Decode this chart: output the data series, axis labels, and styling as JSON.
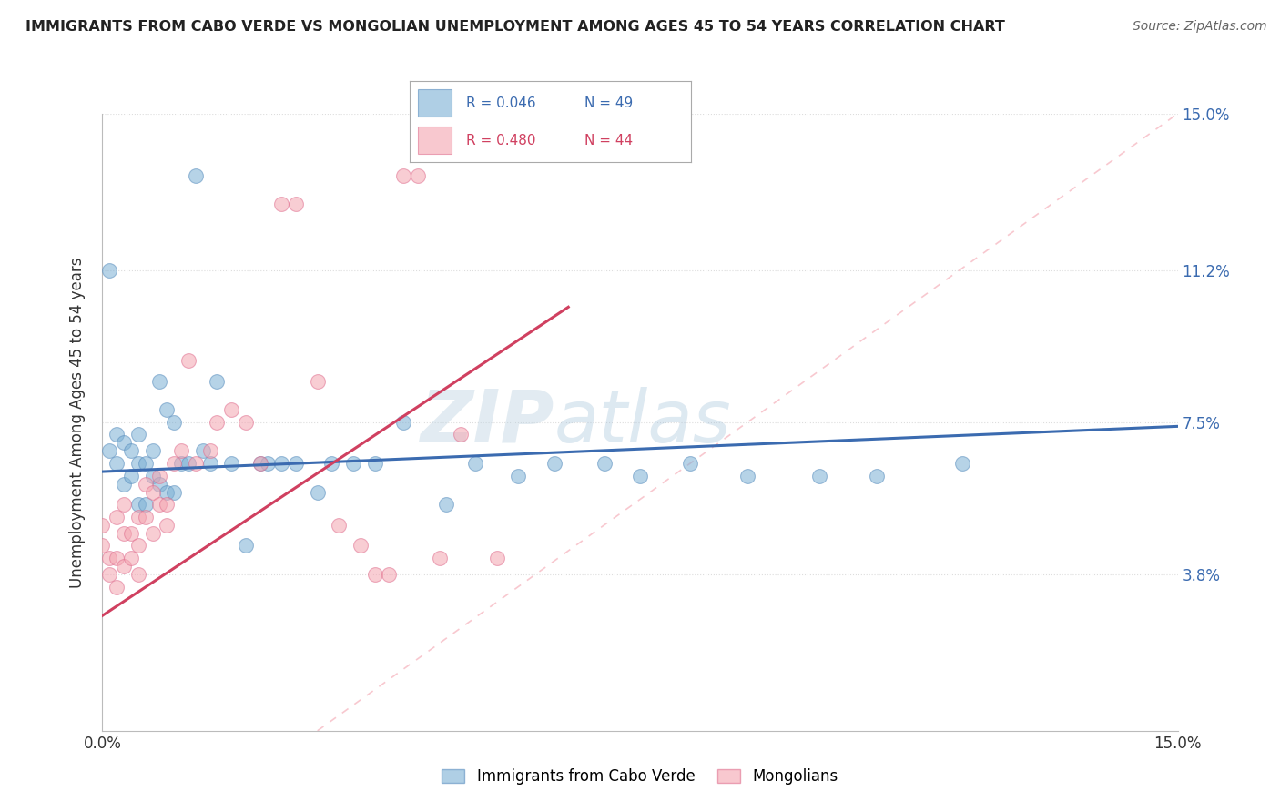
{
  "title": "IMMIGRANTS FROM CABO VERDE VS MONGOLIAN UNEMPLOYMENT AMONG AGES 45 TO 54 YEARS CORRELATION CHART",
  "source": "Source: ZipAtlas.com",
  "ylabel": "Unemployment Among Ages 45 to 54 years",
  "xlim": [
    0.0,
    0.15
  ],
  "ylim": [
    0.0,
    0.15
  ],
  "x_tick_positions": [
    0.0,
    0.15
  ],
  "x_tick_labels": [
    "0.0%",
    "15.0%"
  ],
  "y_tick_vals": [
    0.038,
    0.075,
    0.112,
    0.15
  ],
  "y_tick_labels": [
    "3.8%",
    "7.5%",
    "11.2%",
    "15.0%"
  ],
  "legend_blue_r": "R = 0.046",
  "legend_blue_n": "N = 49",
  "legend_pink_r": "R = 0.480",
  "legend_pink_n": "N = 44",
  "blue_color": "#7BAFD4",
  "pink_color": "#F4A4B0",
  "blue_scatter_edge": "#5B8FBF",
  "pink_scatter_edge": "#E07090",
  "blue_line_color": "#3B6BB0",
  "pink_line_color": "#D04060",
  "watermark_zip": "ZIP",
  "watermark_atlas": "atlas",
  "background_color": "#FFFFFF",
  "grid_color": "#DDDDDD",
  "blue_x": [
    0.001,
    0.001,
    0.002,
    0.002,
    0.003,
    0.003,
    0.004,
    0.004,
    0.005,
    0.005,
    0.005,
    0.006,
    0.006,
    0.007,
    0.007,
    0.008,
    0.008,
    0.009,
    0.009,
    0.01,
    0.01,
    0.011,
    0.012,
    0.013,
    0.014,
    0.015,
    0.016,
    0.018,
    0.02,
    0.022,
    0.023,
    0.025,
    0.027,
    0.03,
    0.032,
    0.035,
    0.038,
    0.042,
    0.048,
    0.052,
    0.058,
    0.063,
    0.07,
    0.075,
    0.082,
    0.09,
    0.1,
    0.108,
    0.12
  ],
  "blue_y": [
    0.112,
    0.068,
    0.065,
    0.072,
    0.06,
    0.07,
    0.062,
    0.068,
    0.055,
    0.065,
    0.072,
    0.055,
    0.065,
    0.062,
    0.068,
    0.06,
    0.085,
    0.058,
    0.078,
    0.058,
    0.075,
    0.065,
    0.065,
    0.135,
    0.068,
    0.065,
    0.085,
    0.065,
    0.045,
    0.065,
    0.065,
    0.065,
    0.065,
    0.058,
    0.065,
    0.065,
    0.065,
    0.075,
    0.055,
    0.065,
    0.062,
    0.065,
    0.065,
    0.062,
    0.065,
    0.062,
    0.062,
    0.062,
    0.065
  ],
  "pink_x": [
    0.0,
    0.0,
    0.001,
    0.001,
    0.002,
    0.002,
    0.002,
    0.003,
    0.003,
    0.003,
    0.004,
    0.004,
    0.005,
    0.005,
    0.005,
    0.006,
    0.006,
    0.007,
    0.007,
    0.008,
    0.008,
    0.009,
    0.009,
    0.01,
    0.011,
    0.012,
    0.013,
    0.015,
    0.016,
    0.018,
    0.02,
    0.022,
    0.025,
    0.027,
    0.03,
    0.033,
    0.036,
    0.038,
    0.04,
    0.042,
    0.044,
    0.047,
    0.05,
    0.055
  ],
  "pink_y": [
    0.045,
    0.05,
    0.038,
    0.042,
    0.035,
    0.042,
    0.052,
    0.04,
    0.048,
    0.055,
    0.042,
    0.048,
    0.038,
    0.045,
    0.052,
    0.052,
    0.06,
    0.048,
    0.058,
    0.055,
    0.062,
    0.05,
    0.055,
    0.065,
    0.068,
    0.09,
    0.065,
    0.068,
    0.075,
    0.078,
    0.075,
    0.065,
    0.128,
    0.128,
    0.085,
    0.05,
    0.045,
    0.038,
    0.038,
    0.135,
    0.135,
    0.042,
    0.072,
    0.042
  ],
  "blue_trend_x": [
    0.0,
    0.15
  ],
  "blue_trend_y": [
    0.063,
    0.074
  ],
  "pink_trend_x": [
    0.0,
    0.065
  ],
  "pink_trend_y": [
    0.028,
    0.103
  ]
}
